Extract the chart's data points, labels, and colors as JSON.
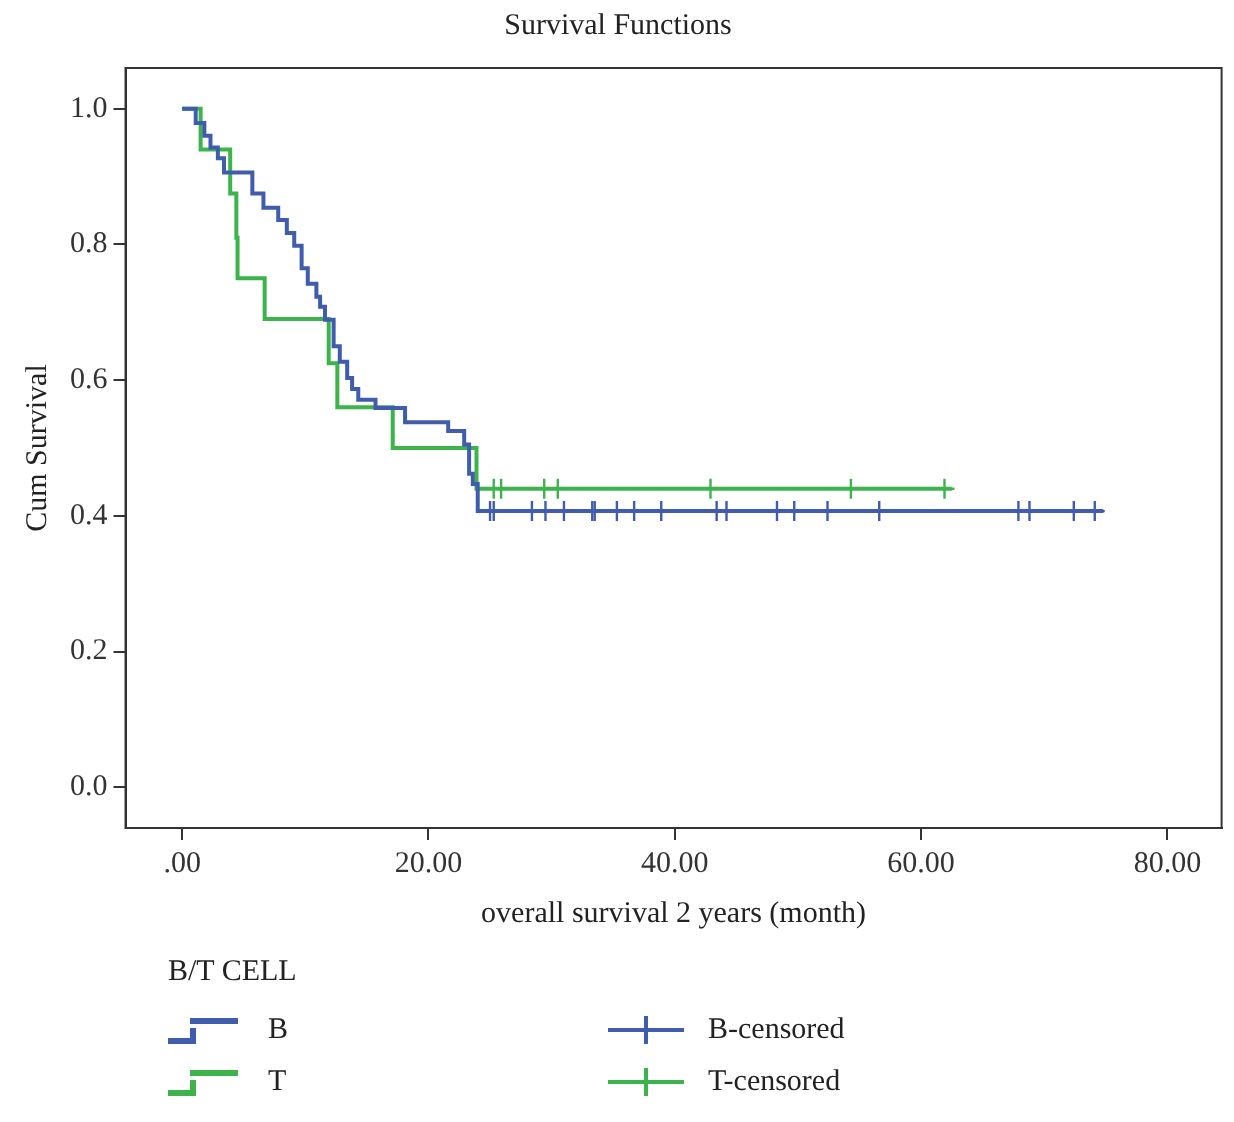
{
  "chart_data": {
    "type": "step",
    "title": "Survival Functions",
    "xlabel": "overall survival 2 years (month)",
    "ylabel": "Cum Survival",
    "legend_title": "B/T CELL",
    "xlim": [
      -4.6,
      84.4
    ],
    "ylim": [
      -0.06,
      1.06
    ],
    "xticks": [
      {
        "value": 0,
        "label": ".00"
      },
      {
        "value": 20,
        "label": "20.00"
      },
      {
        "value": 40,
        "label": "40.00"
      },
      {
        "value": 60,
        "label": "60.00"
      },
      {
        "value": 80,
        "label": "80.00"
      }
    ],
    "yticks": [
      {
        "value": 0,
        "label": "0.0"
      },
      0.2,
      0.4,
      0.6,
      0.8,
      {
        "value": 1,
        "label": "1.0"
      }
    ],
    "grid": false,
    "legend": "bottom",
    "series": [
      {
        "name": "B",
        "color": "#3f5cad",
        "x": [
          0,
          1.1,
          1.8,
          2.3,
          2.9,
          3.4,
          5.7,
          6.6,
          7.8,
          8.5,
          9.1,
          9.7,
          10.2,
          10.9,
          11.2,
          11.6,
          12.3,
          12.8,
          13.4,
          13.8,
          14.3,
          15.7,
          18.1,
          21.6,
          22.9,
          23.3,
          23.6,
          24.0,
          74.8
        ],
        "values": [
          1.0,
          0.979,
          0.96,
          0.943,
          0.927,
          0.906,
          0.875,
          0.854,
          0.836,
          0.817,
          0.798,
          0.765,
          0.742,
          0.723,
          0.708,
          0.689,
          0.65,
          0.627,
          0.603,
          0.587,
          0.571,
          0.559,
          0.538,
          0.525,
          0.505,
          0.462,
          0.447,
          0.407,
          0.407
        ]
      },
      {
        "name": "T",
        "color": "#3cb44b",
        "x": [
          0,
          1.5,
          3.9,
          4.4,
          4.5,
          6.7,
          11.9,
          12.6,
          17.1,
          23.9,
          62.5
        ],
        "values": [
          1.0,
          0.94,
          0.875,
          0.81,
          0.75,
          0.69,
          0.625,
          0.56,
          0.5,
          0.44,
          0.44
        ]
      },
      {
        "name": "B-censored",
        "type": "scatter",
        "marker": "cross",
        "color": "#3f5cad",
        "x": [
          25.0,
          25.3,
          28.4,
          29.5,
          31.0,
          33.3,
          33.5,
          35.3,
          36.7,
          38.9,
          43.4,
          44.2,
          48.3,
          49.7,
          52.4,
          56.6,
          67.9,
          68.8,
          72.4,
          74.1
        ],
        "values": [
          0.407,
          0.407,
          0.407,
          0.407,
          0.407,
          0.407,
          0.407,
          0.407,
          0.407,
          0.407,
          0.407,
          0.407,
          0.407,
          0.407,
          0.407,
          0.407,
          0.407,
          0.407,
          0.407,
          0.407
        ]
      },
      {
        "name": "T-censored",
        "type": "scatter",
        "marker": "cross",
        "color": "#3cb44b",
        "x": [
          25.3,
          25.9,
          29.4,
          30.5,
          42.9,
          54.3,
          61.9
        ],
        "values": [
          0.44,
          0.44,
          0.44,
          0.44,
          0.44,
          0.44,
          0.44
        ]
      }
    ]
  }
}
